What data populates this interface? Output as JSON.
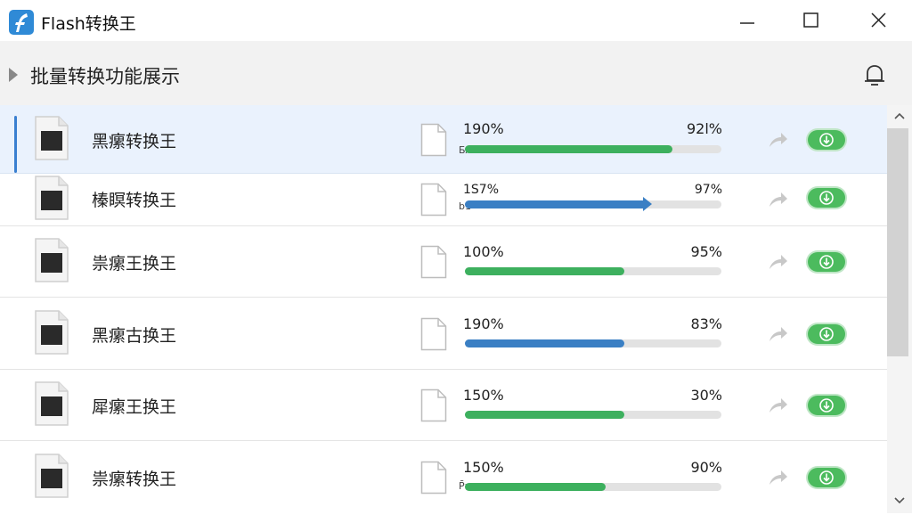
{
  "window": {
    "title": "Flash转换王",
    "icon": "flash-app-icon",
    "controls": {
      "minimize": "minimize-icon",
      "maximize": "maximize-icon",
      "close": "close-icon"
    }
  },
  "header": {
    "title": "批量转换功能展示",
    "icon": "bell-icon"
  },
  "colors": {
    "accent_blue": "#3a7fc4",
    "progress_green": "#3db05e",
    "toggle_green": "#4cbb5e",
    "selected_row": "#eaf2fd"
  },
  "rows": [
    {
      "name": "黑瘰转换王",
      "format": "БΛ",
      "pct_left": "190%",
      "pct_right": "92l%",
      "progress": 0.81,
      "color": "green",
      "selected": true
    },
    {
      "name": "榛瞑转换王",
      "format": "b1",
      "pct_left": "1S7%",
      "pct_right": "97%",
      "progress": 0.7,
      "color": "blue",
      "selected": false
    },
    {
      "name": "祟瘰王换王",
      "format": "",
      "pct_left": "100%",
      "pct_right": "95%",
      "progress": 0.62,
      "color": "green",
      "selected": false
    },
    {
      "name": "黑瘰古换王",
      "format": "",
      "pct_left": "190%",
      "pct_right": "83%",
      "progress": 0.62,
      "color": "blue",
      "selected": false
    },
    {
      "name": "犀瘰王换王",
      "format": "",
      "pct_left": "150%",
      "pct_right": "30%",
      "progress": 0.62,
      "color": "green",
      "selected": false
    },
    {
      "name": "祟瘰转换王",
      "format": "P̄r",
      "pct_left": "150%",
      "pct_right": "90%",
      "progress": 0.55,
      "color": "green",
      "selected": false
    }
  ],
  "scrollbar": {
    "up": "chevron-up-icon",
    "down": "chevron-down-icon"
  }
}
